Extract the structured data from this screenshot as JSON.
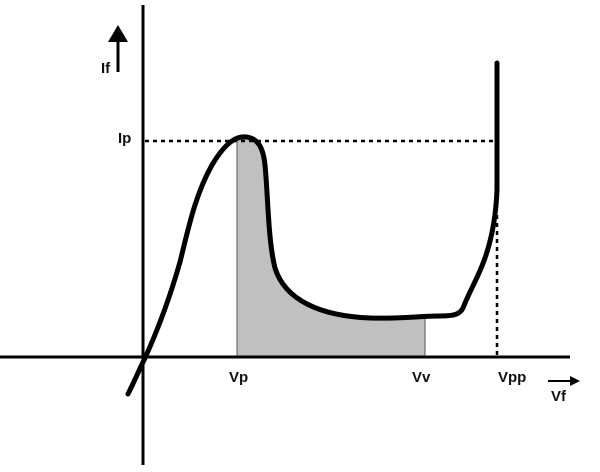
{
  "axes": {
    "y_label": "If",
    "x_label": "Vf"
  },
  "markers": {
    "peak_current": "Ip",
    "peak_voltage": "Vp",
    "valley_voltage": "Vv",
    "peak_point_voltage": "Vpp"
  }
}
